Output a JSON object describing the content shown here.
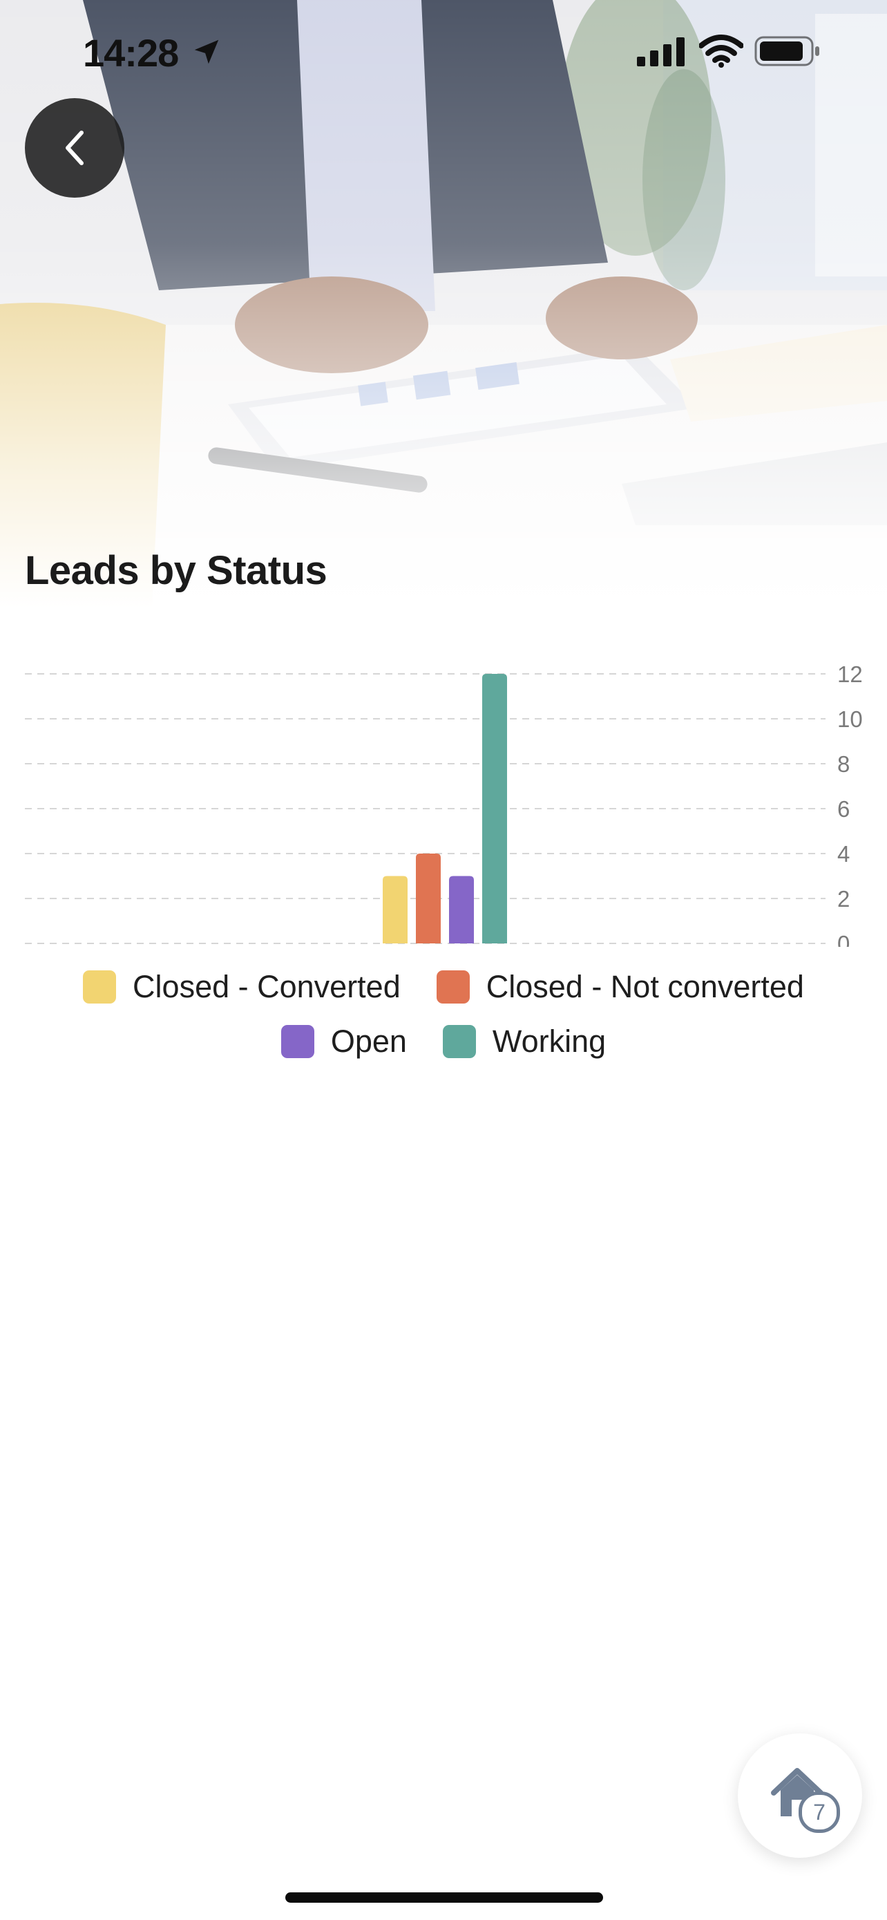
{
  "status_bar": {
    "time": "14:28"
  },
  "header": {
    "title": "Leads by Status"
  },
  "icons": {
    "back": "chevron-left-icon",
    "location": "location-arrow-icon",
    "signal": "cellular-signal-icon",
    "wifi": "wifi-icon",
    "battery": "battery-icon",
    "home": "home-icon"
  },
  "colors": {
    "closed_converted": "#f2d471",
    "closed_not_converted": "#e07452",
    "open": "#8566c8",
    "working": "#5fa89c"
  },
  "chart_data": {
    "type": "bar",
    "categories": [
      "Closed - Converted",
      "Closed - Not converted",
      "Open",
      "Working"
    ],
    "values": [
      3,
      4,
      3,
      12
    ],
    "ylim": [
      0,
      12
    ],
    "yticks": [
      "12",
      "10",
      "8",
      "6",
      "4",
      "2",
      "0"
    ],
    "grid": true,
    "y_axis_side": "right",
    "legend_position": "bottom"
  },
  "fab": {
    "badge_count": "7"
  }
}
